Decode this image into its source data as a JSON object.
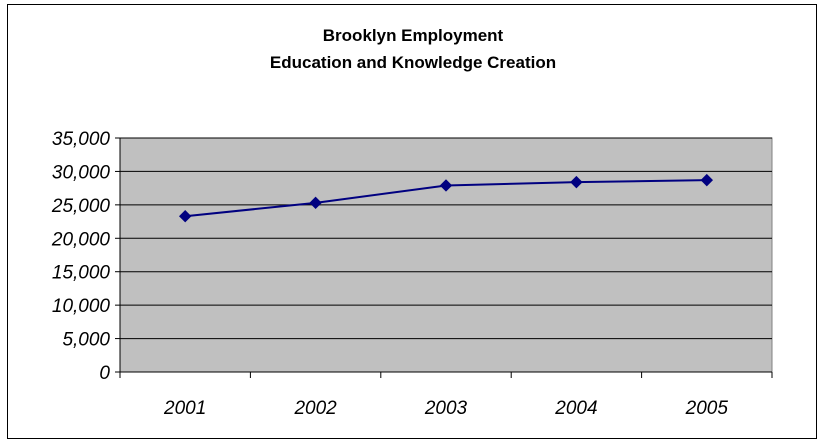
{
  "chart_data": {
    "type": "line",
    "title": "Brooklyn Employment",
    "subtitle": "Education and Knowledge Creation",
    "xlabel": "",
    "ylabel": "",
    "categories": [
      "2001",
      "2002",
      "2003",
      "2004",
      "2005"
    ],
    "values": [
      23300,
      25300,
      27900,
      28400,
      28700
    ],
    "ylim": [
      0,
      35000
    ],
    "y_ticks": [
      "0",
      "5,000",
      "10,000",
      "15,000",
      "20,000",
      "25,000",
      "30,000",
      "35,000"
    ],
    "grid": true,
    "legend": "none",
    "colors": {
      "line": "#000080",
      "plot_background": "#c0c0c0",
      "gridline": "#000000"
    }
  }
}
